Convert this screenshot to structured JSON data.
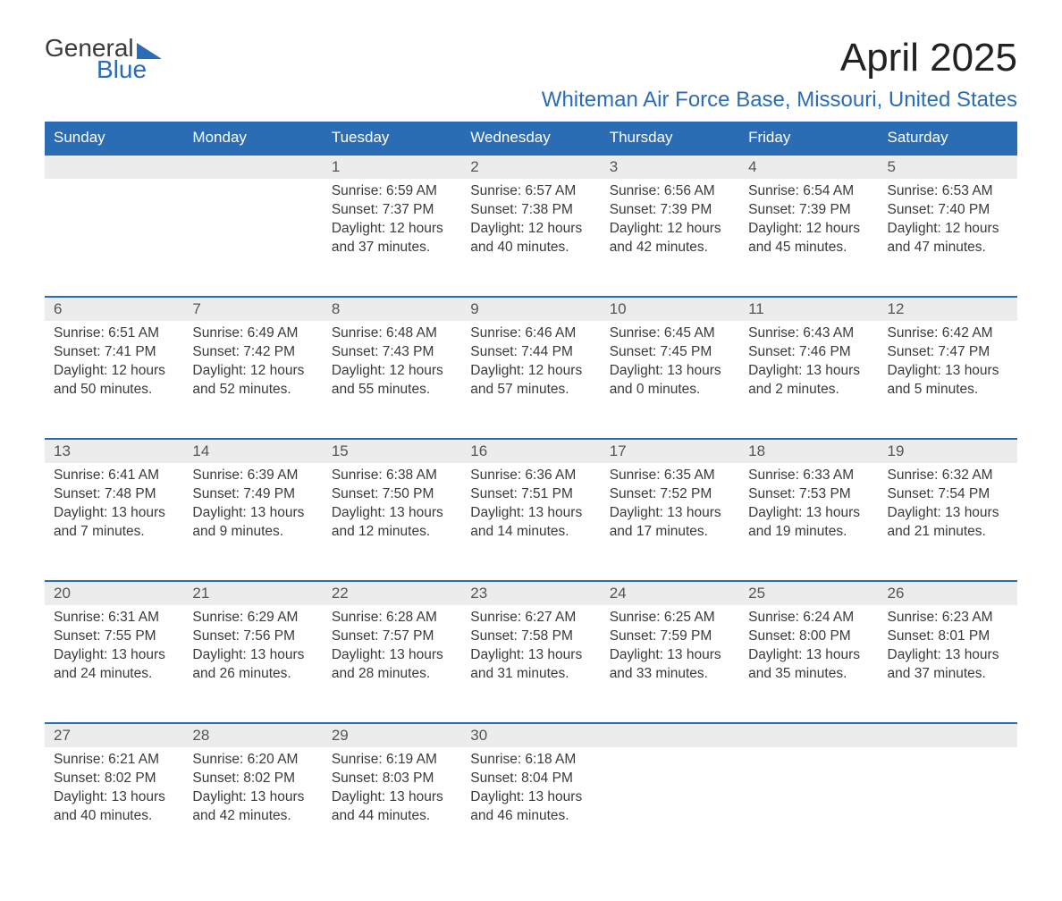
{
  "brand": {
    "word1": "General",
    "word2": "Blue"
  },
  "title": "April 2025",
  "location": "Whiteman Air Force Base, Missouri, United States",
  "columns": [
    "Sunday",
    "Monday",
    "Tuesday",
    "Wednesday",
    "Thursday",
    "Friday",
    "Saturday"
  ],
  "style": {
    "header_bg": "#2a6db5",
    "header_text": "#ffffff",
    "daynum_bg": "#ececec",
    "row_border": "#2a6db5",
    "body_text": "#3a3a3a",
    "accent": "#2a6db5",
    "page_bg": "#ffffff",
    "title_fontsize": 44,
    "location_fontsize": 24,
    "th_fontsize": 17,
    "cell_fontsize": 15.5
  },
  "weeks": [
    [
      null,
      null,
      {
        "n": "1",
        "sr": "6:59 AM",
        "ss": "7:37 PM",
        "dl": "12 hours and 37 minutes."
      },
      {
        "n": "2",
        "sr": "6:57 AM",
        "ss": "7:38 PM",
        "dl": "12 hours and 40 minutes."
      },
      {
        "n": "3",
        "sr": "6:56 AM",
        "ss": "7:39 PM",
        "dl": "12 hours and 42 minutes."
      },
      {
        "n": "4",
        "sr": "6:54 AM",
        "ss": "7:39 PM",
        "dl": "12 hours and 45 minutes."
      },
      {
        "n": "5",
        "sr": "6:53 AM",
        "ss": "7:40 PM",
        "dl": "12 hours and 47 minutes."
      }
    ],
    [
      {
        "n": "6",
        "sr": "6:51 AM",
        "ss": "7:41 PM",
        "dl": "12 hours and 50 minutes."
      },
      {
        "n": "7",
        "sr": "6:49 AM",
        "ss": "7:42 PM",
        "dl": "12 hours and 52 minutes."
      },
      {
        "n": "8",
        "sr": "6:48 AM",
        "ss": "7:43 PM",
        "dl": "12 hours and 55 minutes."
      },
      {
        "n": "9",
        "sr": "6:46 AM",
        "ss": "7:44 PM",
        "dl": "12 hours and 57 minutes."
      },
      {
        "n": "10",
        "sr": "6:45 AM",
        "ss": "7:45 PM",
        "dl": "13 hours and 0 minutes."
      },
      {
        "n": "11",
        "sr": "6:43 AM",
        "ss": "7:46 PM",
        "dl": "13 hours and 2 minutes."
      },
      {
        "n": "12",
        "sr": "6:42 AM",
        "ss": "7:47 PM",
        "dl": "13 hours and 5 minutes."
      }
    ],
    [
      {
        "n": "13",
        "sr": "6:41 AM",
        "ss": "7:48 PM",
        "dl": "13 hours and 7 minutes."
      },
      {
        "n": "14",
        "sr": "6:39 AM",
        "ss": "7:49 PM",
        "dl": "13 hours and 9 minutes."
      },
      {
        "n": "15",
        "sr": "6:38 AM",
        "ss": "7:50 PM",
        "dl": "13 hours and 12 minutes."
      },
      {
        "n": "16",
        "sr": "6:36 AM",
        "ss": "7:51 PM",
        "dl": "13 hours and 14 minutes."
      },
      {
        "n": "17",
        "sr": "6:35 AM",
        "ss": "7:52 PM",
        "dl": "13 hours and 17 minutes."
      },
      {
        "n": "18",
        "sr": "6:33 AM",
        "ss": "7:53 PM",
        "dl": "13 hours and 19 minutes."
      },
      {
        "n": "19",
        "sr": "6:32 AM",
        "ss": "7:54 PM",
        "dl": "13 hours and 21 minutes."
      }
    ],
    [
      {
        "n": "20",
        "sr": "6:31 AM",
        "ss": "7:55 PM",
        "dl": "13 hours and 24 minutes."
      },
      {
        "n": "21",
        "sr": "6:29 AM",
        "ss": "7:56 PM",
        "dl": "13 hours and 26 minutes."
      },
      {
        "n": "22",
        "sr": "6:28 AM",
        "ss": "7:57 PM",
        "dl": "13 hours and 28 minutes."
      },
      {
        "n": "23",
        "sr": "6:27 AM",
        "ss": "7:58 PM",
        "dl": "13 hours and 31 minutes."
      },
      {
        "n": "24",
        "sr": "6:25 AM",
        "ss": "7:59 PM",
        "dl": "13 hours and 33 minutes."
      },
      {
        "n": "25",
        "sr": "6:24 AM",
        "ss": "8:00 PM",
        "dl": "13 hours and 35 minutes."
      },
      {
        "n": "26",
        "sr": "6:23 AM",
        "ss": "8:01 PM",
        "dl": "13 hours and 37 minutes."
      }
    ],
    [
      {
        "n": "27",
        "sr": "6:21 AM",
        "ss": "8:02 PM",
        "dl": "13 hours and 40 minutes."
      },
      {
        "n": "28",
        "sr": "6:20 AM",
        "ss": "8:02 PM",
        "dl": "13 hours and 42 minutes."
      },
      {
        "n": "29",
        "sr": "6:19 AM",
        "ss": "8:03 PM",
        "dl": "13 hours and 44 minutes."
      },
      {
        "n": "30",
        "sr": "6:18 AM",
        "ss": "8:04 PM",
        "dl": "13 hours and 46 minutes."
      },
      null,
      null,
      null
    ]
  ],
  "labels": {
    "sunrise": "Sunrise: ",
    "sunset": "Sunset: ",
    "daylight": "Daylight: "
  }
}
